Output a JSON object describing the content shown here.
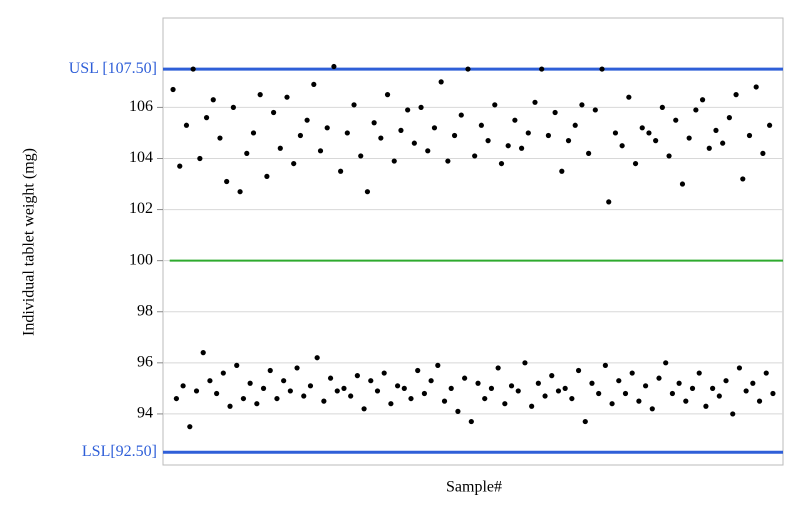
{
  "chart_data": {
    "type": "scatter",
    "x_label": "Sample#",
    "y_label": "Individual tablet weight (mg)",
    "xlim": [
      -2,
      183
    ],
    "ylim": [
      92,
      109.5
    ],
    "yticks": [
      94,
      96,
      98,
      100,
      102,
      104,
      106
    ],
    "grid": true,
    "reference_lines": [
      {
        "value": 107.5,
        "label": "USL [107.50]",
        "color": "#2f5fd8"
      },
      {
        "value": 100,
        "color": "#2eaa2e"
      },
      {
        "value": 92.5,
        "label": "LSL[92.50]",
        "color": "#2f5fd8"
      }
    ],
    "series": [
      {
        "color": "#000000",
        "x": [
          1,
          3,
          5,
          7,
          9,
          11,
          13,
          15,
          17,
          19,
          21,
          23,
          25,
          27,
          29,
          31,
          33,
          35,
          37,
          39,
          41,
          43,
          45,
          47,
          49,
          51,
          53,
          55,
          57,
          59,
          61,
          63,
          65,
          67,
          69,
          71,
          73,
          75,
          77,
          79,
          81,
          83,
          85,
          87,
          89,
          91,
          93,
          95,
          97,
          99,
          101,
          103,
          105,
          107,
          109,
          111,
          113,
          115,
          117,
          119,
          121,
          123,
          125,
          127,
          129,
          131,
          133,
          135,
          137,
          139,
          141,
          143,
          145,
          147,
          149,
          151,
          153,
          155,
          157,
          159,
          161,
          163,
          165,
          167,
          169,
          171,
          173,
          175,
          177,
          179
        ],
        "values": [
          106.7,
          103.7,
          105.3,
          107.5,
          104.0,
          105.6,
          106.3,
          104.8,
          103.1,
          106.0,
          102.7,
          104.2,
          105.0,
          106.5,
          103.3,
          105.8,
          104.4,
          106.4,
          103.8,
          104.9,
          105.5,
          106.9,
          104.3,
          105.2,
          107.6,
          103.5,
          105.0,
          106.1,
          104.1,
          102.7,
          105.4,
          104.8,
          106.5,
          103.9,
          105.1,
          105.9,
          104.6,
          106.0,
          104.3,
          105.2,
          107.0,
          103.9,
          104.9,
          105.7,
          107.5,
          104.1,
          105.3,
          104.7,
          106.1,
          103.8,
          104.5,
          105.5,
          104.4,
          105.0,
          106.2,
          107.5,
          104.9,
          105.8,
          103.5,
          104.7,
          105.3,
          106.1,
          104.2,
          105.9,
          107.5,
          102.3,
          105.0,
          104.5,
          106.4,
          103.8,
          105.2,
          105.0,
          104.7,
          106.0,
          104.1,
          105.5,
          103.0,
          104.8,
          105.9,
          106.3,
          104.4,
          105.1,
          104.6,
          105.6,
          106.5,
          103.2,
          104.9,
          106.8,
          104.2,
          105.3
        ]
      },
      {
        "color": "#000000",
        "x": [
          2,
          4,
          6,
          8,
          10,
          12,
          14,
          16,
          18,
          20,
          22,
          24,
          26,
          28,
          30,
          32,
          34,
          36,
          38,
          40,
          42,
          44,
          46,
          48,
          50,
          52,
          54,
          56,
          58,
          60,
          62,
          64,
          66,
          68,
          70,
          72,
          74,
          76,
          78,
          80,
          82,
          84,
          86,
          88,
          90,
          92,
          94,
          96,
          98,
          100,
          102,
          104,
          106,
          108,
          110,
          112,
          114,
          116,
          118,
          120,
          122,
          124,
          126,
          128,
          130,
          132,
          134,
          136,
          138,
          140,
          142,
          144,
          146,
          148,
          150,
          152,
          154,
          156,
          158,
          160,
          162,
          164,
          166,
          168,
          170,
          172,
          174,
          176,
          178,
          180
        ],
        "values": [
          94.6,
          95.1,
          93.5,
          94.9,
          96.4,
          95.3,
          94.8,
          95.6,
          94.3,
          95.9,
          94.6,
          95.2,
          94.4,
          95.0,
          95.7,
          94.6,
          95.3,
          94.9,
          95.8,
          94.7,
          95.1,
          96.2,
          94.5,
          95.4,
          94.9,
          95.0,
          94.7,
          95.5,
          94.2,
          95.3,
          94.9,
          95.6,
          94.4,
          95.1,
          95.0,
          94.6,
          95.7,
          94.8,
          95.3,
          95.9,
          94.5,
          95.0,
          94.1,
          95.4,
          93.7,
          95.2,
          94.6,
          95.0,
          95.8,
          94.4,
          95.1,
          94.9,
          96.0,
          94.3,
          95.2,
          94.7,
          95.5,
          94.9,
          95.0,
          94.6,
          95.7,
          93.7,
          95.2,
          94.8,
          95.9,
          94.4,
          95.3,
          94.8,
          95.6,
          94.5,
          95.1,
          94.2,
          95.4,
          96.0,
          94.8,
          95.2,
          94.5,
          95.0,
          95.6,
          94.3,
          95.0,
          94.7,
          95.3,
          94.0,
          95.8,
          94.9,
          95.2,
          94.5,
          95.6,
          94.8
        ]
      }
    ]
  }
}
